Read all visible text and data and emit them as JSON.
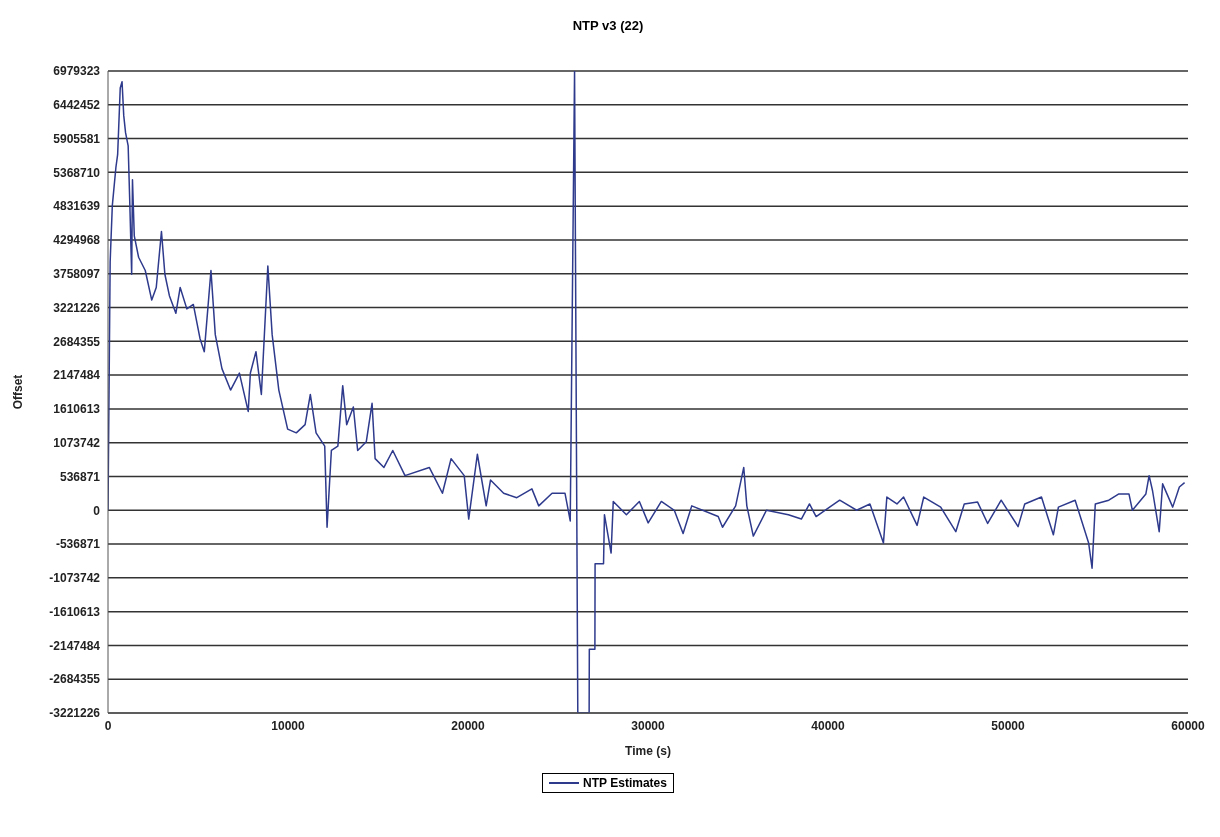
{
  "chart_data": {
    "type": "line",
    "title": "NTP v3 (22)",
    "xlabel": "Time (s)",
    "ylabel": "Offset",
    "xlim": [
      0,
      60000
    ],
    "xticks": [
      0,
      10000,
      20000,
      30000,
      40000,
      50000,
      60000
    ],
    "ylim": [
      -3221226,
      6979323
    ],
    "yticks": [
      -3221226,
      -2684355,
      -2147484,
      -1610613,
      -1073742,
      -536871,
      0,
      536871,
      1073742,
      1610613,
      2147484,
      2684355,
      3221226,
      3758097,
      4294968,
      4831639,
      5368710,
      5905581,
      6442452,
      6979323
    ],
    "grid": "y",
    "legend": "bottom",
    "marker": "none",
    "line_style": "solid",
    "series": [
      {
        "name": "NTP Estimates",
        "color": "#2e3a8c",
        "x": [
          0,
          120,
          240,
          440,
          535,
          680,
          780,
          875,
          975,
          1120,
          1215,
          1315,
          1360,
          1460,
          1700,
          2070,
          2430,
          2680,
          2970,
          3160,
          3410,
          3770,
          4010,
          4380,
          4740,
          5110,
          5350,
          5720,
          5960,
          6330,
          6810,
          7300,
          7790,
          7910,
          8220,
          8520,
          8880,
          9120,
          9490,
          9980,
          10460,
          10950,
          11240,
          11560,
          12040,
          12170,
          12410,
          12770,
          13040,
          13260,
          13630,
          13870,
          14350,
          14670,
          14840,
          15330,
          15820,
          16500,
          17850,
          18580,
          19060,
          19790,
          20040,
          20520,
          21010,
          21250,
          21980,
          22710,
          23550,
          23930,
          24670,
          25390,
          25680,
          25920,
          26100,
          26730,
          26740,
          27050,
          27060,
          27530,
          27580,
          27950,
          28070,
          28800,
          29520,
          30010,
          30740,
          31460,
          31950,
          32430,
          33900,
          34140,
          34870,
          35320,
          35490,
          35850,
          36580,
          37800,
          38520,
          38970,
          39340,
          40090,
          40650,
          41590,
          42330,
          43080,
          43270,
          43830,
          44200,
          44950,
          45320,
          46260,
          47100,
          47570,
          48310,
          48870,
          49620,
          50560,
          50930,
          51860,
          52520,
          52800,
          53730,
          54480,
          54670,
          54850,
          55600,
          56160,
          56720,
          56910,
          57660,
          57840,
          58030,
          58400,
          58590,
          59150,
          59520,
          59810
        ],
        "values": [
          0,
          3950000,
          4840000,
          5450000,
          5650000,
          6710000,
          6810000,
          6270000,
          6000000,
          5790000,
          4840000,
          3750000,
          5250000,
          4360000,
          4020000,
          3810000,
          3340000,
          3540000,
          4430000,
          3750000,
          3410000,
          3130000,
          3540000,
          3200000,
          3270000,
          2730000,
          2520000,
          3810000,
          2790000,
          2250000,
          1910000,
          2180000,
          1570000,
          2180000,
          2520000,
          1840000,
          3880000,
          2790000,
          1910000,
          1290000,
          1230000,
          1360000,
          1840000,
          1230000,
          1020000,
          -270000,
          950000,
          1020000,
          1980000,
          1360000,
          1640000,
          950000,
          1090000,
          1700000,
          820000,
          680000,
          950000,
          550000,
          680000,
          270000,
          820000,
          550000,
          -140000,
          890000,
          70000,
          480000,
          270000,
          200000,
          340000,
          70000,
          270000,
          270000,
          -170000,
          6979323,
          -3221226,
          -3221226,
          -2210000,
          -2210000,
          -850000,
          -850000,
          -70000,
          -680000,
          140000,
          -70000,
          140000,
          -200000,
          140000,
          0,
          -370000,
          70000,
          -100000,
          -270000,
          70000,
          680000,
          70000,
          -410000,
          0,
          -70000,
          -140000,
          100000,
          -100000,
          50000,
          160000,
          0,
          100000,
          -520000,
          210000,
          100000,
          210000,
          -240000,
          210000,
          50000,
          -340000,
          100000,
          130000,
          -210000,
          160000,
          -260000,
          100000,
          210000,
          -390000,
          50000,
          160000,
          -520000,
          -920000,
          100000,
          160000,
          260000,
          260000,
          0,
          260000,
          550000,
          310000,
          -340000,
          420000,
          50000,
          370000,
          440000
        ]
      }
    ]
  }
}
